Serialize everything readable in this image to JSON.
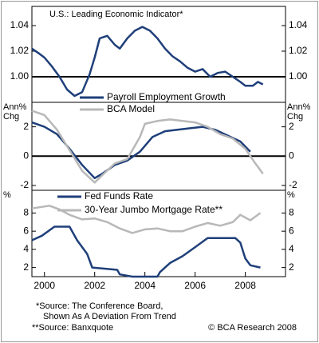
{
  "chart_data": [
    {
      "type": "line",
      "title": "U.S.:  Leading Economic Indicator*",
      "xlim": [
        1999.5,
        2009.6
      ],
      "ylim": [
        0.98,
        1.055
      ],
      "yticks": [
        {
          "value": 1.0,
          "label": "1.00"
        },
        {
          "value": 1.02,
          "label": "1.02"
        },
        {
          "value": 1.04,
          "label": "1.04"
        }
      ],
      "hline": 1,
      "series": [
        {
          "name": null,
          "color": "#1f3f7a",
          "x": [
            1999.5,
            1999.8,
            2000.0,
            2000.3,
            2000.6,
            2000.9,
            2001.2,
            2001.5,
            2001.8,
            2002.0,
            2002.2,
            2002.5,
            2002.8,
            2003.0,
            2003.3,
            2003.6,
            2003.9,
            2004.2,
            2004.5,
            2004.8,
            2005.1,
            2005.4,
            2005.7,
            2006.0,
            2006.3,
            2006.6,
            2006.9,
            2007.2,
            2007.5,
            2007.8,
            2008.0,
            2008.3,
            2008.5,
            2008.7
          ],
          "values": [
            1.022,
            1.018,
            1.015,
            1.008,
            1.0,
            0.99,
            0.985,
            0.988,
            1.002,
            1.015,
            1.03,
            1.032,
            1.025,
            1.022,
            1.03,
            1.036,
            1.039,
            1.036,
            1.03,
            1.022,
            1.016,
            1.012,
            1.007,
            1.004,
            1.006,
            1.0,
            1.003,
            1.004,
            1.0,
            0.996,
            0.993,
            0.993,
            0.996,
            0.994
          ]
        }
      ]
    },
    {
      "type": "line",
      "ylabel": [
        "Ann%",
        "Chg"
      ],
      "xlim": [
        1999.5,
        2009.6
      ],
      "ylim": [
        -2.33,
        3.67
      ],
      "yticks": [
        -2,
        0,
        2
      ],
      "hline": 0,
      "series": [
        {
          "name": "Payroll Employment Growth",
          "color": "#1f3f7a",
          "x": [
            1999.5,
            2000.0,
            2000.5,
            2001.0,
            2001.5,
            2002.0,
            2002.3,
            2002.8,
            2003.3,
            2003.8,
            2004.3,
            2004.8,
            2005.3,
            2005.8,
            2006.3,
            2006.8,
            2007.3,
            2007.8,
            2008.2
          ],
          "values": [
            2.3,
            2.0,
            1.5,
            0.5,
            -0.6,
            -1.5,
            -1.2,
            -0.6,
            -0.3,
            0.3,
            1.3,
            1.7,
            1.8,
            1.9,
            2.0,
            1.8,
            1.4,
            1.0,
            0.3
          ]
        },
        {
          "name": "BCA Model",
          "color": "#b8b8b8",
          "x": [
            1999.5,
            2000.0,
            2000.5,
            2001.0,
            2001.5,
            2002.0,
            2002.3,
            2002.8,
            2003.3,
            2003.8,
            2004.0,
            2004.5,
            2005.0,
            2005.5,
            2006.0,
            2006.5,
            2007.0,
            2007.5,
            2008.0,
            2008.4,
            2008.7
          ],
          "values": [
            3.1,
            2.8,
            1.8,
            0.4,
            -1.0,
            -1.8,
            -1.3,
            -0.5,
            -0.2,
            1.3,
            2.2,
            2.4,
            2.5,
            2.4,
            2.3,
            2.0,
            1.5,
            1.2,
            0.5,
            -0.5,
            -1.2
          ]
        }
      ]
    },
    {
      "type": "line",
      "ylabel": [
        "%"
      ],
      "xlim": [
        1999.5,
        2009.6
      ],
      "ylim": [
        1,
        10.5
      ],
      "yticks": [
        2,
        4,
        6,
        8
      ],
      "xticks": [
        2000,
        2002,
        2004,
        2006,
        2008
      ],
      "series": [
        {
          "name": "Fed Funds Rate",
          "color": "#1f3f7a",
          "x": [
            1999.5,
            1999.9,
            2000.4,
            2001.0,
            2001.3,
            2001.7,
            2001.9,
            2002.9,
            2003.0,
            2003.5,
            2004.5,
            2004.6,
            2005.0,
            2005.5,
            2006.0,
            2006.5,
            2007.6,
            2007.8,
            2008.0,
            2008.2,
            2008.6
          ],
          "values": [
            5.0,
            5.5,
            6.5,
            6.5,
            5.0,
            3.5,
            2.0,
            1.75,
            1.25,
            1.0,
            1.0,
            1.5,
            2.5,
            3.25,
            4.25,
            5.25,
            5.25,
            4.75,
            3.0,
            2.25,
            2.0
          ]
        },
        {
          "name": "30-Year Jumbo Mortgage Rate**",
          "color": "#b8b8b8",
          "x": [
            1999.5,
            2000.2,
            2000.6,
            2001.0,
            2001.5,
            2002.0,
            2002.5,
            2003.0,
            2003.5,
            2004.0,
            2004.5,
            2005.0,
            2005.5,
            2006.0,
            2006.5,
            2007.0,
            2007.5,
            2007.8,
            2008.2,
            2008.6
          ],
          "values": [
            8.5,
            8.8,
            8.4,
            7.8,
            7.3,
            7.4,
            7.0,
            6.3,
            5.8,
            6.2,
            6.3,
            6.0,
            6.0,
            6.5,
            6.9,
            6.6,
            7.0,
            7.8,
            7.2,
            8.0
          ]
        }
      ]
    }
  ],
  "footnotes": [
    "*Source: The Conference Board,",
    "Shown As A Deviation From Trend",
    "**Source: Banxquote"
  ],
  "credit": "© BCA Research 2008"
}
